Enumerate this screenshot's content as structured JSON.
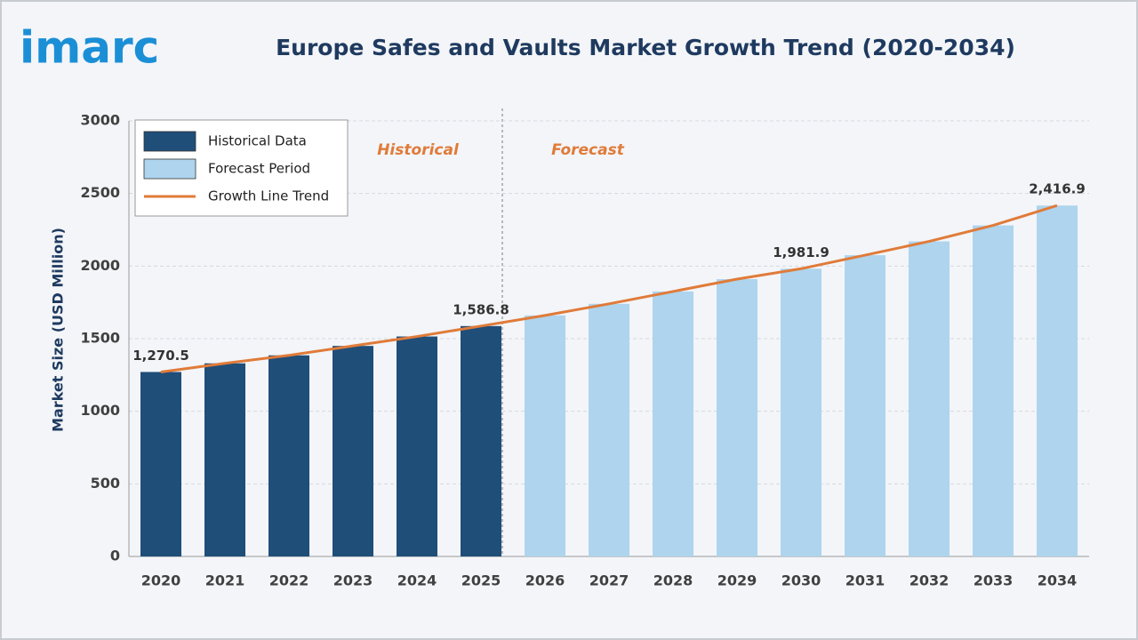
{
  "chart_data": {
    "type": "bar",
    "logo": "imarc",
    "title": "Europe Safes and Vaults Market Growth Trend (2020-2034)",
    "y_label": "Market Size (USD Million)",
    "annotations": [
      "Historical",
      "Forecast"
    ],
    "annotation_color": "#e07b39",
    "categories": [
      "2020",
      "2021",
      "2022",
      "2023",
      "2024",
      "2025",
      "2026",
      "2027",
      "2028",
      "2029",
      "2030",
      "2031",
      "2032",
      "2033",
      "2034"
    ],
    "series": [
      {
        "name": "Historical Data",
        "type": "bar",
        "color": "#1f4e79",
        "values": [
          1270.5,
          1330,
          1385,
          1450,
          1515,
          1586.8,
          null,
          null,
          null,
          null,
          null,
          null,
          null,
          null,
          null
        ]
      },
      {
        "name": "Forecast Period",
        "type": "bar",
        "color": "#aed4ee",
        "values": [
          null,
          null,
          null,
          null,
          null,
          null,
          1660,
          1740,
          1825,
          1910,
          1981.9,
          2075,
          2170,
          2280,
          2416.9
        ]
      },
      {
        "name": "Growth Line Trend",
        "type": "line",
        "color": "#e07b39",
        "values": [
          1270.5,
          1330,
          1385,
          1450,
          1515,
          1586.8,
          1660,
          1740,
          1825,
          1910,
          1981.9,
          2075,
          2170,
          2280,
          2416.9
        ],
        "value_labels": [
          "1,270.5",
          null,
          null,
          null,
          null,
          "1,586.8",
          null,
          null,
          null,
          null,
          "1,981.9",
          null,
          null,
          null,
          "2,416.9"
        ]
      }
    ],
    "ylim": [
      0,
      3000
    ],
    "yticks": [
      0,
      500,
      1000,
      1500,
      2000,
      2500,
      3000
    ],
    "grid": true,
    "legend": "top-left"
  }
}
